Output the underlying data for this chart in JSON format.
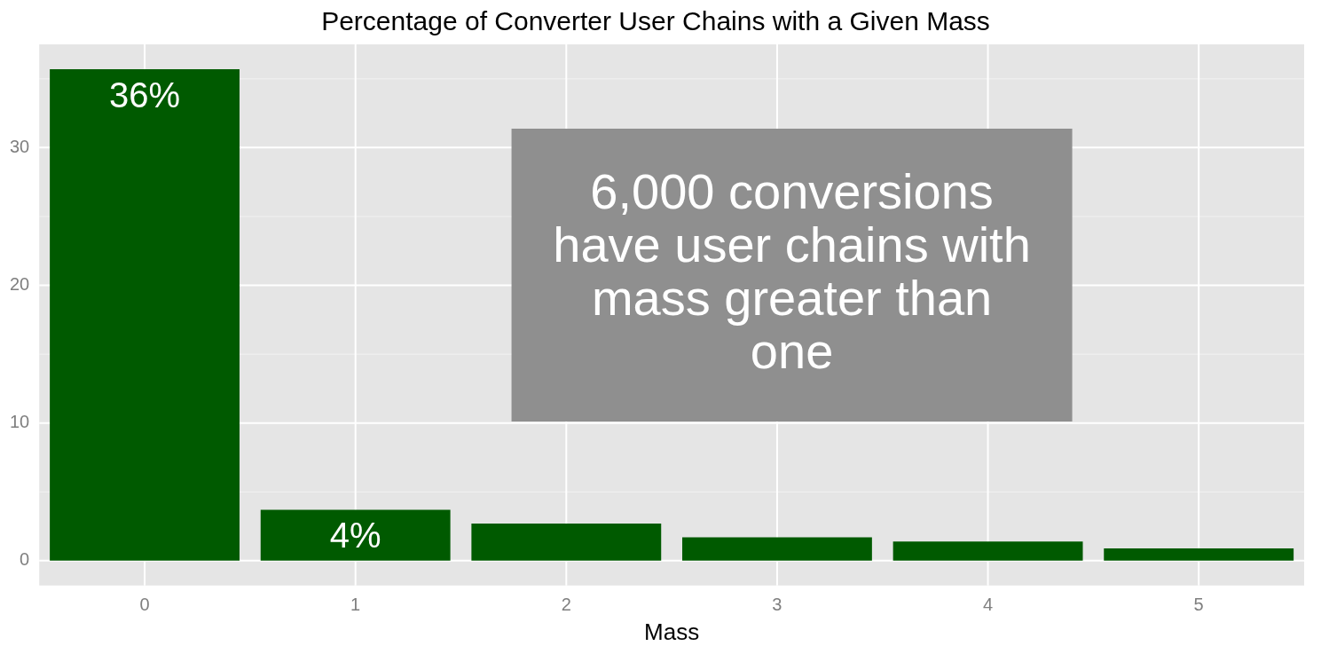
{
  "chart_data": {
    "type": "bar",
    "title": "Percentage of Converter User Chains with a Given Mass",
    "xlabel": "Mass",
    "categories": [
      "0",
      "1",
      "2",
      "3",
      "4",
      "5"
    ],
    "values": [
      35.7,
      3.7,
      2.7,
      1.7,
      1.4,
      0.9
    ],
    "value_labels": [
      "36%",
      "4%",
      null,
      null,
      null,
      null
    ],
    "color": "#005a00",
    "ylim": [
      -1.8,
      37.5
    ],
    "yticks": [
      0,
      {
        "value": 5,
        "label": null
      },
      10,
      {
        "value": 15,
        "label": null
      },
      20,
      {
        "value": 25,
        "label": null
      },
      30,
      {
        "value": 35,
        "label": null
      }
    ],
    "grid": true,
    "legend": false,
    "annotations": [
      "6,000 conversions have user chains with mass greater than one"
    ]
  }
}
